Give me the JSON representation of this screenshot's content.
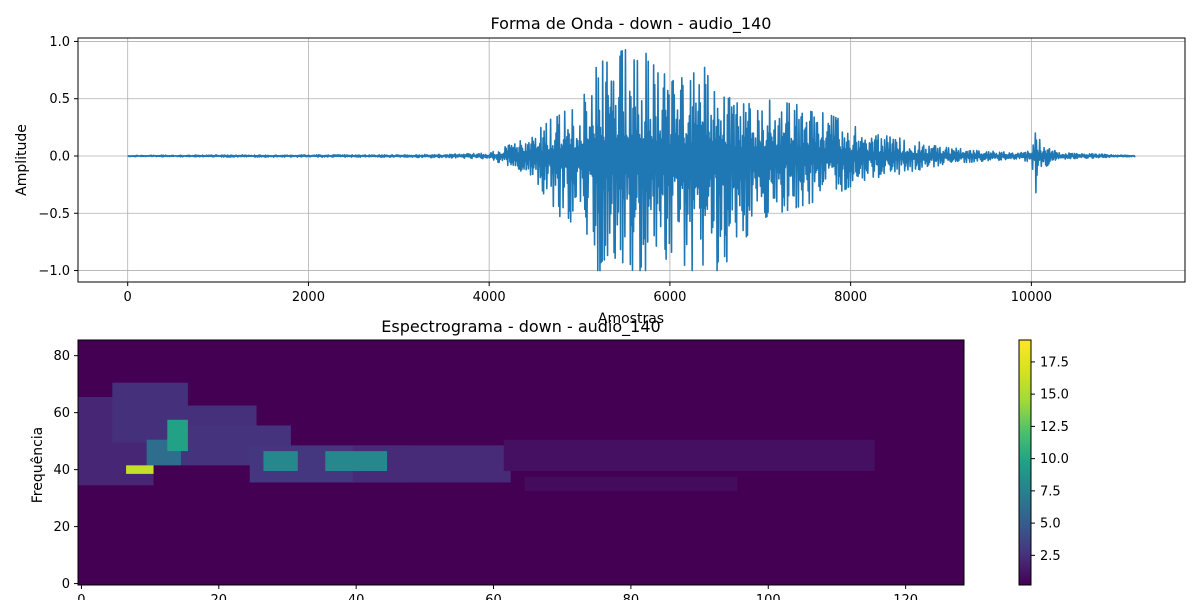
{
  "chart_data": [
    {
      "type": "line",
      "title": "Forma de Onda - down - audio_140",
      "xlabel": "Amostras",
      "ylabel": "Amplitude",
      "xlim": [
        -550,
        11700
      ],
      "ylim": [
        -1.1,
        1.03
      ],
      "grid": true,
      "x_ticks": [
        0,
        2000,
        4000,
        6000,
        8000,
        10000
      ],
      "y_ticks": [
        -1.0,
        -0.5,
        0.0,
        0.5,
        1.0
      ],
      "x_tick_labels": [
        "0",
        "2000",
        "4000",
        "6000",
        "8000",
        "10000"
      ],
      "y_tick_labels": [
        "−1.0",
        "−0.5",
        "0.0",
        "0.5",
        "1.0"
      ],
      "line_color": "#1f77b4",
      "sample_count": 11150,
      "envelope": {
        "x": [
          0,
          1500,
          3000,
          3500,
          4000,
          4400,
          4800,
          5000,
          5200,
          5400,
          5600,
          5800,
          6000,
          6200,
          6400,
          6600,
          6800,
          7000,
          7400,
          7800,
          8200,
          8600,
          9000,
          9400,
          9800,
          10000,
          10050,
          10100,
          10300,
          10600,
          11150
        ],
        "max": [
          0.005,
          0.01,
          0.01,
          0.015,
          0.025,
          0.15,
          0.4,
          0.45,
          0.8,
          0.9,
          0.95,
          0.87,
          0.65,
          0.7,
          0.78,
          0.6,
          0.45,
          0.5,
          0.45,
          0.35,
          0.2,
          0.15,
          0.08,
          0.05,
          0.03,
          0.05,
          0.27,
          0.12,
          0.03,
          0.02,
          0.005
        ],
        "min": [
          -0.005,
          -0.01,
          -0.01,
          -0.015,
          -0.025,
          -0.15,
          -0.55,
          -0.6,
          -1.0,
          -1.0,
          -1.0,
          -1.0,
          -1.0,
          -1.0,
          -1.0,
          -1.0,
          -0.75,
          -0.55,
          -0.45,
          -0.35,
          -0.2,
          -0.15,
          -0.08,
          -0.05,
          -0.03,
          -0.05,
          -0.32,
          -0.12,
          -0.03,
          -0.02,
          -0.005
        ]
      }
    },
    {
      "type": "heatmap",
      "title": "Espectrograma - down - audio_140",
      "xlabel": "",
      "ylabel": "Frequência",
      "xlim": [
        -0.5,
        128.5
      ],
      "ylim": [
        -0.5,
        85.5
      ],
      "x_ticks": [
        0,
        20,
        40,
        60,
        80,
        100,
        120
      ],
      "y_ticks": [
        0,
        20,
        40,
        60,
        80
      ],
      "x_tick_labels": [
        "0",
        "20",
        "40",
        "60",
        "80",
        "100",
        "120"
      ],
      "y_tick_labels": [
        "0",
        "20",
        "40",
        "60",
        "80"
      ],
      "colormap": "viridis",
      "colorbar": {
        "range": [
          0.2,
          19.2
        ],
        "ticks": [
          2.5,
          5.0,
          7.5,
          10.0,
          12.5,
          15.0,
          17.5
        ],
        "tick_labels": [
          "2.5",
          "5.0",
          "7.5",
          "10.0",
          "12.5",
          "15.0",
          "17.5"
        ]
      },
      "background_value": 0.2,
      "components": [
        {
          "t": [
            0,
            10
          ],
          "f": [
            35,
            65
          ],
          "value": 2.2
        },
        {
          "t": [
            5,
            15
          ],
          "f": [
            50,
            70
          ],
          "value": 2.8
        },
        {
          "t": [
            10,
            25
          ],
          "f": [
            50,
            62
          ],
          "value": 2.8
        },
        {
          "t": [
            15,
            30
          ],
          "f": [
            42,
            55
          ],
          "value": 3.0
        },
        {
          "t": [
            25,
            48
          ],
          "f": [
            36,
            48
          ],
          "value": 3.2
        },
        {
          "t": [
            40,
            62
          ],
          "f": [
            36,
            48
          ],
          "value": 2.5
        },
        {
          "t": [
            62,
            115
          ],
          "f": [
            40,
            50
          ],
          "value": 1.0
        },
        {
          "t": [
            65,
            95
          ],
          "f": [
            33,
            37
          ],
          "value": 0.8
        },
        {
          "t": [
            10,
            14
          ],
          "f": [
            42,
            50
          ],
          "value": 7.0
        },
        {
          "t": [
            13,
            15
          ],
          "f": [
            47,
            57
          ],
          "value": 11.0
        },
        {
          "t": [
            27,
            31
          ],
          "f": [
            40,
            46
          ],
          "value": 9.0
        },
        {
          "t": [
            36,
            44
          ],
          "f": [
            40,
            46
          ],
          "value": 9.0
        },
        {
          "t": [
            7,
            10
          ],
          "f": [
            39,
            41
          ],
          "value": 17.5
        }
      ]
    }
  ]
}
